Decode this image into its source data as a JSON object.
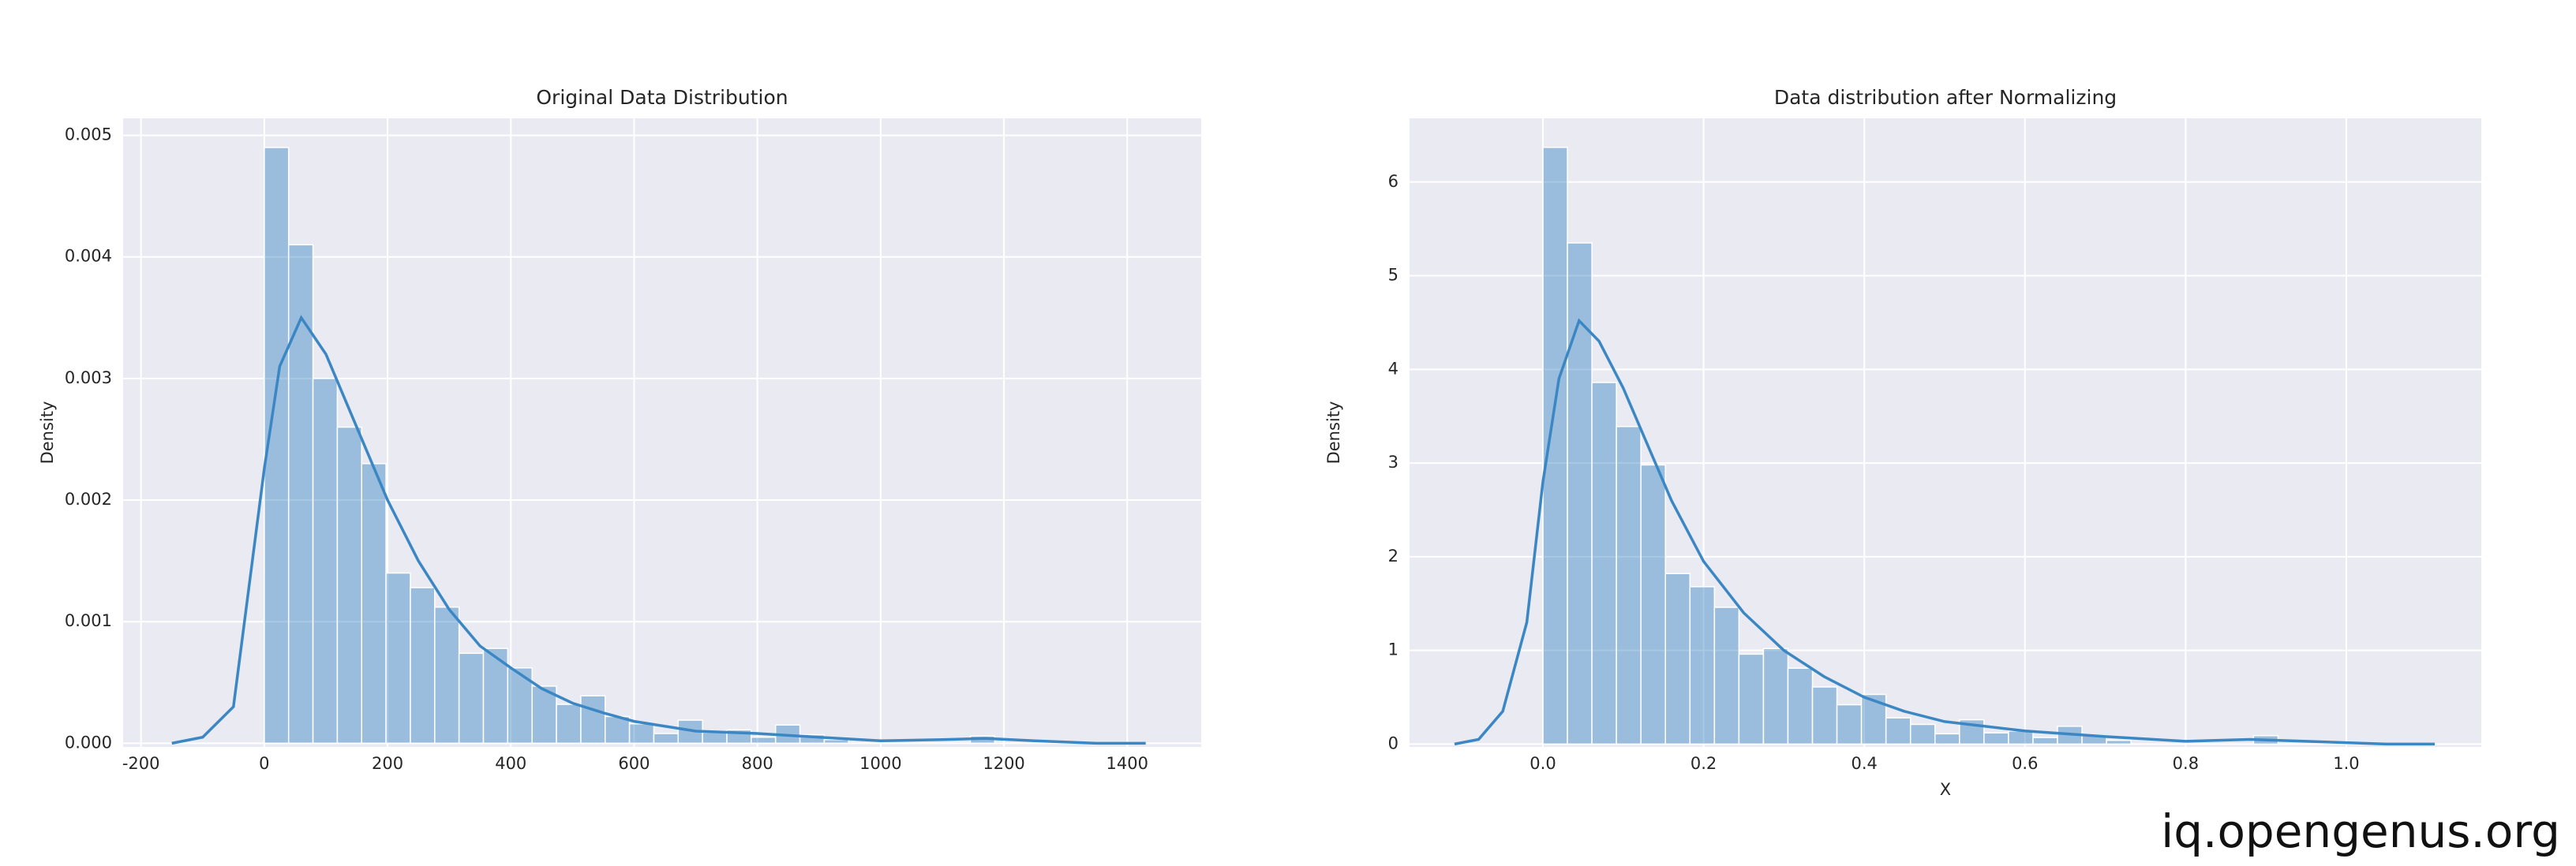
{
  "chart_data": [
    {
      "type": "histogram",
      "title": "Original Data Distribution",
      "ylabel": "Density",
      "color": "#3b87c4",
      "grid": true,
      "bins": [
        0,
        39.5,
        79,
        118.5,
        158,
        197.5,
        237,
        276.5,
        316,
        355.5,
        395,
        434.5,
        474,
        513.5,
        553,
        592.5,
        632,
        671.5,
        711,
        750.5,
        790,
        829.5,
        869,
        908.5,
        948,
        987.5,
        1027,
        1066.5,
        1106,
        1145.5,
        1185
      ],
      "values": [
        0.0049,
        0.0041,
        0.003,
        0.0026,
        0.0023,
        0.0014,
        0.00128,
        0.00112,
        0.00074,
        0.00078,
        0.00062,
        0.00047,
        0.00032,
        0.00039,
        0.00022,
        0.00016,
        8e-05,
        0.00019,
        9e-05,
        0.00011,
        5e-05,
        0.00015,
        7e-05,
        3e-05,
        0,
        0,
        0,
        0,
        0,
        6e-05
      ],
      "kde_x": [
        -150,
        -100,
        -50,
        0,
        25,
        60,
        100,
        150,
        200,
        250,
        300,
        350,
        400,
        450,
        500,
        550,
        600,
        700,
        800,
        900,
        1000,
        1100,
        1170,
        1250,
        1350,
        1430
      ],
      "kde_values": [
        0,
        5e-05,
        0.0003,
        0.00226,
        0.0031,
        0.0035,
        0.0032,
        0.0026,
        0.002,
        0.0015,
        0.0011,
        0.0008,
        0.00062,
        0.00045,
        0.00033,
        0.00025,
        0.00018,
        0.0001,
        8e-05,
        5e-05,
        2e-05,
        3e-05,
        4e-05,
        2e-05,
        0,
        0
      ],
      "xlim": [
        -229,
        1520
      ],
      "ylim": [
        -3e-05,
        0.00514
      ],
      "xticks": [
        -200,
        0,
        200,
        400,
        600,
        800,
        1000,
        1200,
        1400
      ],
      "yticks": [
        {
          "value": 0,
          "label": "0.000"
        },
        {
          "value": 0.001,
          "label": "0.001"
        },
        {
          "value": 0.002,
          "label": "0.002"
        },
        {
          "value": 0.003,
          "label": "0.003"
        },
        {
          "value": 0.004,
          "label": "0.004"
        },
        {
          "value": 0.005,
          "label": "0.005"
        }
      ]
    },
    {
      "type": "histogram",
      "title": "Data distribution after Normalizing",
      "xlabel": "X",
      "ylabel": "Density",
      "color": "#3b87c4",
      "grid": true,
      "bins": [
        0,
        0.0305,
        0.061,
        0.0915,
        0.122,
        0.1525,
        0.183,
        0.2135,
        0.244,
        0.2745,
        0.305,
        0.3355,
        0.366,
        0.3965,
        0.427,
        0.4575,
        0.488,
        0.5185,
        0.549,
        0.5795,
        0.61,
        0.6405,
        0.671,
        0.7015,
        0.732,
        0.7625,
        0.793,
        0.8235,
        0.854,
        0.8845,
        0.915
      ],
      "values": [
        6.37,
        5.35,
        3.86,
        3.39,
        2.98,
        1.82,
        1.68,
        1.46,
        0.96,
        1.02,
        0.81,
        0.61,
        0.42,
        0.53,
        0.28,
        0.21,
        0.11,
        0.26,
        0.12,
        0.14,
        0.07,
        0.19,
        0.09,
        0.04,
        0,
        0,
        0,
        0,
        0,
        0.09
      ],
      "kde_x": [
        -0.11,
        -0.08,
        -0.05,
        -0.02,
        0,
        0.02,
        0.045,
        0.07,
        0.1,
        0.13,
        0.16,
        0.2,
        0.25,
        0.3,
        0.35,
        0.4,
        0.45,
        0.5,
        0.6,
        0.7,
        0.8,
        0.88,
        0.95,
        1.05,
        1.11
      ],
      "kde_values": [
        0,
        0.05,
        0.35,
        1.3,
        2.8,
        3.9,
        4.52,
        4.3,
        3.8,
        3.2,
        2.6,
        1.95,
        1.4,
        1.0,
        0.72,
        0.5,
        0.35,
        0.24,
        0.14,
        0.08,
        0.03,
        0.05,
        0.03,
        0,
        0
      ],
      "xlim": [
        -0.166,
        1.168
      ],
      "ylim": [
        -0.03,
        6.68
      ],
      "xticks": [
        {
          "value": 0,
          "label": "0.0"
        },
        {
          "value": 0.2,
          "label": "0.2"
        },
        {
          "value": 0.4,
          "label": "0.4"
        },
        {
          "value": 0.6,
          "label": "0.6"
        },
        {
          "value": 0.8,
          "label": "0.8"
        },
        {
          "value": 1,
          "label": "1.0"
        }
      ],
      "yticks": [
        0,
        1,
        2,
        3,
        4,
        5,
        6
      ]
    }
  ],
  "watermark": "iq.opengenus.org"
}
